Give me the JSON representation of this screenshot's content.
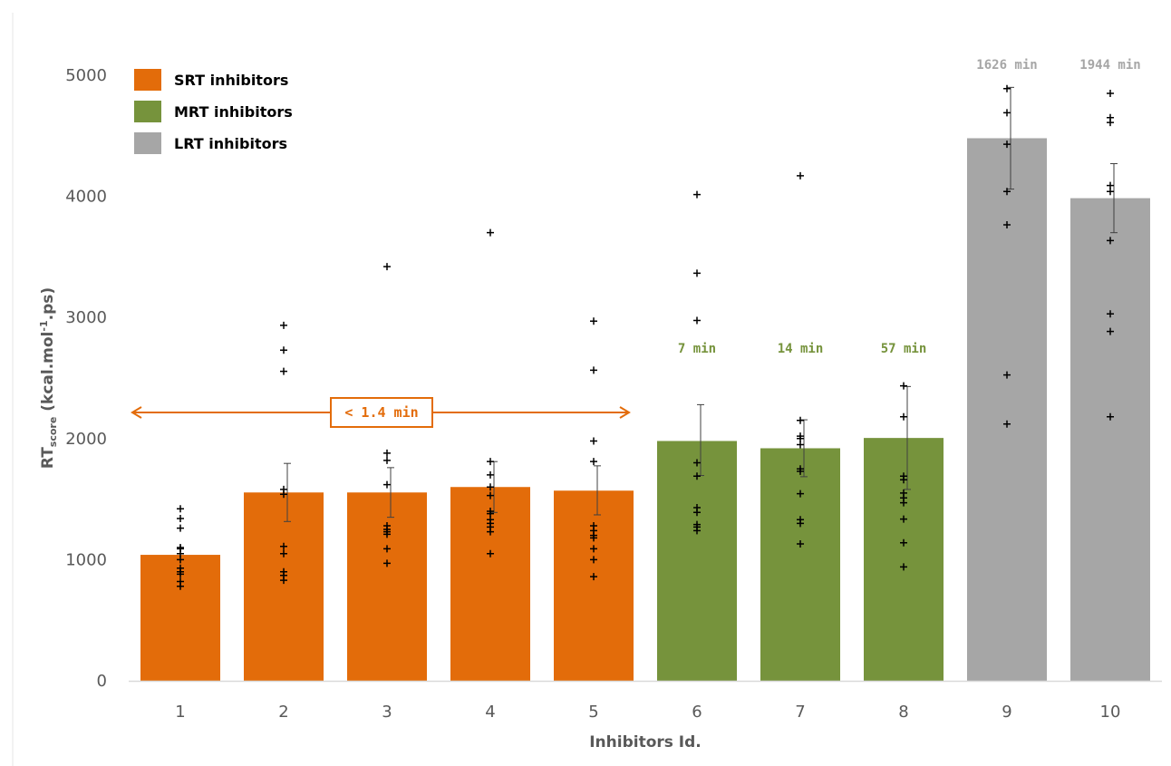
{
  "colors": {
    "srt": "#E36C0A",
    "mrt": "#76933C",
    "lrt": "#A6A6A6",
    "axis": "#D9D9D9",
    "text": "#595959"
  },
  "chart_data": {
    "type": "bar",
    "xlabel": "Inhibitors Id.",
    "ylabel": {
      "main": "RT",
      "sub": "score",
      "units_pre": " (kcal.mol",
      "sup": "-1",
      "units_post": ".ps)"
    },
    "ylim": [
      0,
      5000
    ],
    "yticks": [
      "0",
      "1000",
      "2000",
      "3000",
      "4000",
      "5000"
    ],
    "grid": false,
    "legend": {
      "position": "top-left",
      "entries": [
        {
          "label": "SRT inhibitors",
          "color": "#E36C0A"
        },
        {
          "label": "MRT inhibitors",
          "color": "#76933C"
        },
        {
          "label": "LRT inhibitors",
          "color": "#A6A6A6"
        }
      ]
    },
    "categories": [
      "1",
      "2",
      "3",
      "4",
      "5",
      "6",
      "7",
      "8",
      "9",
      "10"
    ],
    "groups": [
      "SRT",
      "SRT",
      "SRT",
      "SRT",
      "SRT",
      "MRT",
      "MRT",
      "MRT",
      "LRT",
      "LRT"
    ],
    "values": [
      1040,
      1555,
      1555,
      1600,
      1570,
      1980,
      1920,
      2005,
      4480,
      3985
    ],
    "error_low": [
      null,
      1315,
      1350,
      1390,
      1370,
      1695,
      1685,
      1580,
      4060,
      3700
    ],
    "error_high": [
      null,
      1795,
      1760,
      1810,
      1775,
      2280,
      2155,
      2430,
      4900,
      4270
    ],
    "points": [
      [
        780,
        820,
        880,
        900,
        930,
        1000,
        1050,
        1090,
        1100,
        1260,
        1340,
        1420
      ],
      [
        830,
        870,
        900,
        1050,
        1110,
        1540,
        1580,
        2555,
        2730,
        2935
      ],
      [
        970,
        1090,
        1210,
        1230,
        1250,
        1280,
        1620,
        1820,
        1880,
        3420
      ],
      [
        1050,
        1230,
        1270,
        1300,
        1330,
        1380,
        1400,
        1530,
        1600,
        1700,
        1810,
        3700
      ],
      [
        860,
        1000,
        1090,
        1180,
        1200,
        1240,
        1280,
        1810,
        1980,
        2565,
        2970
      ],
      [
        1240,
        1270,
        1290,
        1390,
        1430,
        1690,
        1800,
        2975,
        3365,
        4015
      ],
      [
        1130,
        1300,
        1330,
        1545,
        1730,
        1750,
        1950,
        2000,
        2020,
        2150,
        4170
      ],
      [
        940,
        1140,
        1335,
        1470,
        1510,
        1550,
        1660,
        1690,
        2180,
        2435
      ],
      [
        2120,
        2525,
        3765,
        4040,
        4430,
        4690,
        4890
      ],
      [
        2180,
        2885,
        3030,
        3635,
        4040,
        4090,
        4610,
        4650,
        4850
      ]
    ],
    "annotations": [
      {
        "category": "6",
        "text": "7 min",
        "color": "#76933C"
      },
      {
        "category": "7",
        "text": "14 min",
        "color": "#76933C"
      },
      {
        "category": "8",
        "text": "57 min",
        "color": "#76933C"
      },
      {
        "category": "9",
        "text": "1626 min",
        "color": "#A6A6A6"
      },
      {
        "category": "10",
        "text": "1944 min",
        "color": "#A6A6A6"
      }
    ],
    "range_annotation": {
      "text": "< 1.4 min",
      "color": "#E36C0A",
      "from": "1",
      "to": "5"
    }
  }
}
